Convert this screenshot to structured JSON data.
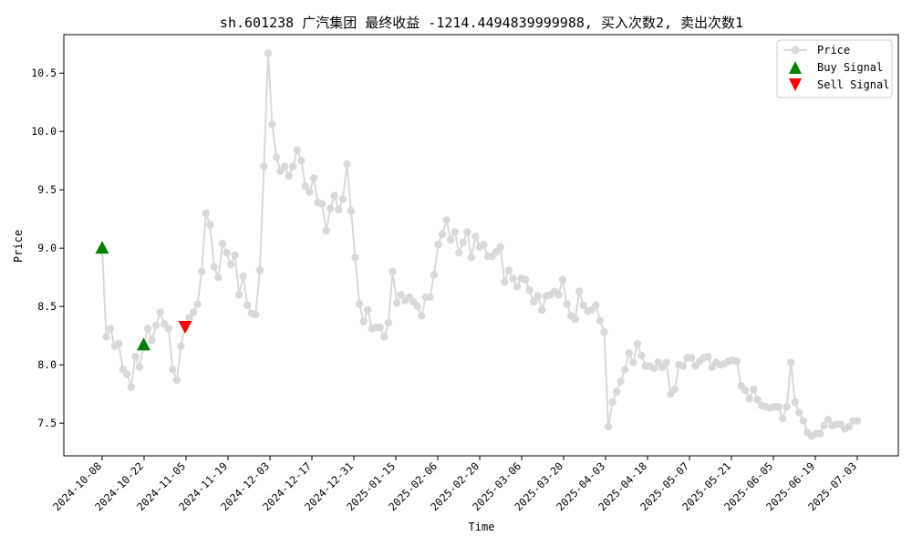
{
  "chart_data": {
    "type": "line",
    "title": "sh.601238 广汽集团 最终收益 -1214.4494839999988, 买入次数2, 卖出次数1",
    "xlabel": "Time",
    "ylabel": "Price",
    "ylim": [
      7.22,
      10.83
    ],
    "yticks": [
      7.5,
      8.0,
      8.5,
      9.0,
      9.5,
      10.0,
      10.5
    ],
    "xticks": [
      "2024-10-08",
      "2024-10-22",
      "2024-11-05",
      "2024-11-19",
      "2024-12-03",
      "2024-12-17",
      "2024-12-31",
      "2025-01-15",
      "2025-02-06",
      "2025-02-20",
      "2025-03-06",
      "2025-03-20",
      "2025-04-03",
      "2025-04-18",
      "2025-05-07",
      "2025-05-21",
      "2025-06-05",
      "2025-06-19",
      "2025-07-03"
    ],
    "legend_position": "top-right",
    "grid": false,
    "colors": {
      "price": "#d9d9d9",
      "buy": "#008000",
      "sell": "#ff0000"
    },
    "series": [
      {
        "name": "Price",
        "values": [
          9.0,
          8.24,
          8.31,
          8.16,
          8.18,
          7.96,
          7.92,
          7.81,
          8.07,
          7.98,
          8.17,
          8.31,
          8.21,
          8.34,
          8.45,
          8.35,
          8.31,
          7.96,
          7.87,
          8.16,
          8.33,
          8.4,
          8.45,
          8.52,
          8.8,
          9.3,
          9.2,
          8.84,
          8.75,
          9.04,
          8.96,
          8.86,
          8.94,
          8.6,
          8.76,
          8.51,
          8.44,
          8.43,
          8.81,
          9.7,
          10.67,
          10.06,
          9.78,
          9.66,
          9.7,
          9.62,
          9.7,
          9.84,
          9.75,
          9.53,
          9.48,
          9.6,
          9.39,
          9.38,
          9.15,
          9.34,
          9.45,
          9.33,
          9.42,
          9.72,
          9.32,
          8.92,
          8.52,
          8.37,
          8.47,
          8.31,
          8.32,
          8.32,
          8.24,
          8.36,
          8.8,
          8.53,
          8.6,
          8.55,
          8.58,
          8.54,
          8.5,
          8.42,
          8.58,
          8.58,
          8.77,
          9.03,
          9.12,
          9.24,
          9.07,
          9.14,
          8.96,
          9.05,
          9.14,
          8.92,
          9.1,
          9.01,
          9.03,
          8.93,
          8.93,
          8.97,
          9.01,
          8.71,
          8.81,
          8.74,
          8.67,
          8.74,
          8.73,
          8.64,
          8.54,
          8.59,
          8.47,
          8.59,
          8.6,
          8.63,
          8.6,
          8.73,
          8.52,
          8.42,
          8.39,
          8.63,
          8.51,
          8.46,
          8.47,
          8.51,
          8.38,
          8.28,
          7.47,
          7.68,
          7.77,
          7.86,
          7.96,
          8.1,
          8.02,
          8.18,
          8.08,
          7.99,
          7.99,
          7.97,
          8.02,
          7.98,
          8.02,
          7.75,
          7.79,
          8.0,
          7.99,
          8.06,
          8.06,
          7.99,
          8.03,
          8.06,
          8.07,
          7.98,
          8.02,
          8.0,
          8.01,
          8.03,
          8.04,
          8.03,
          7.82,
          7.78,
          7.71,
          7.79,
          7.7,
          7.65,
          7.64,
          7.63,
          7.64,
          7.64,
          7.54,
          7.64,
          8.02,
          7.68,
          7.59,
          7.52,
          7.42,
          7.39,
          7.41,
          7.41,
          7.48,
          7.53,
          7.48,
          7.49,
          7.49,
          7.45,
          7.47,
          7.52,
          7.52
        ]
      }
    ],
    "buy_signals": [
      {
        "index": 0,
        "value": 9.0
      },
      {
        "index": 10,
        "value": 8.17
      }
    ],
    "sell_signals": [
      {
        "index": 20,
        "value": 8.33
      }
    ],
    "legend": [
      "Price",
      "Buy Signal",
      "Sell Signal"
    ]
  }
}
